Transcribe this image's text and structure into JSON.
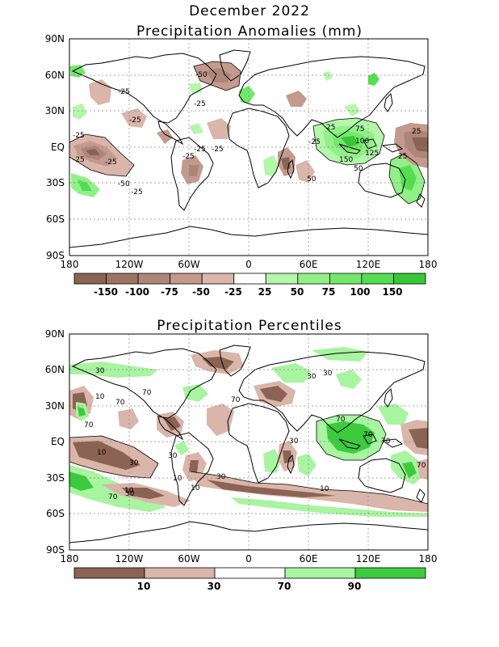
{
  "header": {
    "month": "December 2022",
    "anomaly_title": "Precipitation Anomalies (mm)",
    "percentile_title": "Precipitation Percentiles"
  },
  "axes": {
    "lat_labels": [
      "90N",
      "60N",
      "30N",
      "EQ",
      "30S",
      "60S",
      "90S"
    ],
    "lon_labels": [
      "180",
      "120W",
      "60W",
      "0",
      "60E",
      "120E",
      "180"
    ]
  },
  "colors": {
    "brown_dark": "#8b6355",
    "brown_mid": "#a87f72",
    "brown_light": "#c39a8d",
    "brown_pale": "#dab5a9",
    "green_pale": "#a8f4a0",
    "green_light": "#88ee80",
    "green_mid": "#66e560",
    "green_dark": "#3ccb3c"
  },
  "anomaly_colorbar": {
    "labels": [
      "-150",
      "-100",
      "-75",
      "-50",
      "-25",
      "25",
      "50",
      "75",
      "100",
      "150"
    ],
    "bins": [
      "#8b6355",
      "#9d7365",
      "#ae8679",
      "#c39a8d",
      "#dab5a9",
      "#ffffff",
      "#b4f6aa",
      "#92f088",
      "#72e86a",
      "#54dd50",
      "#37c737"
    ]
  },
  "percentile_colorbar": {
    "labels": [
      "10",
      "30",
      "70",
      "90"
    ],
    "bins": [
      "#8b6355",
      "#dab5a9",
      "#ffffff",
      "#a8f4a0",
      "#3ccb3c"
    ]
  },
  "anomaly_contour_labels": [
    "-50",
    "-25",
    "-25",
    "-25",
    "-25",
    "-25",
    "-25",
    "-25",
    "-25",
    "-25",
    "-50",
    "-25",
    "25",
    "75",
    "100",
    "125",
    "150",
    "25",
    "50",
    "25",
    "50",
    "-25"
  ],
  "percentile_contour_labels": [
    "30",
    "10",
    "70",
    "70",
    "70",
    "30",
    "10",
    "30",
    "30",
    "70",
    "70",
    "70",
    "30",
    "30",
    "10",
    "10",
    "70",
    "30",
    "10",
    "70",
    "70",
    "30",
    "10"
  ]
}
